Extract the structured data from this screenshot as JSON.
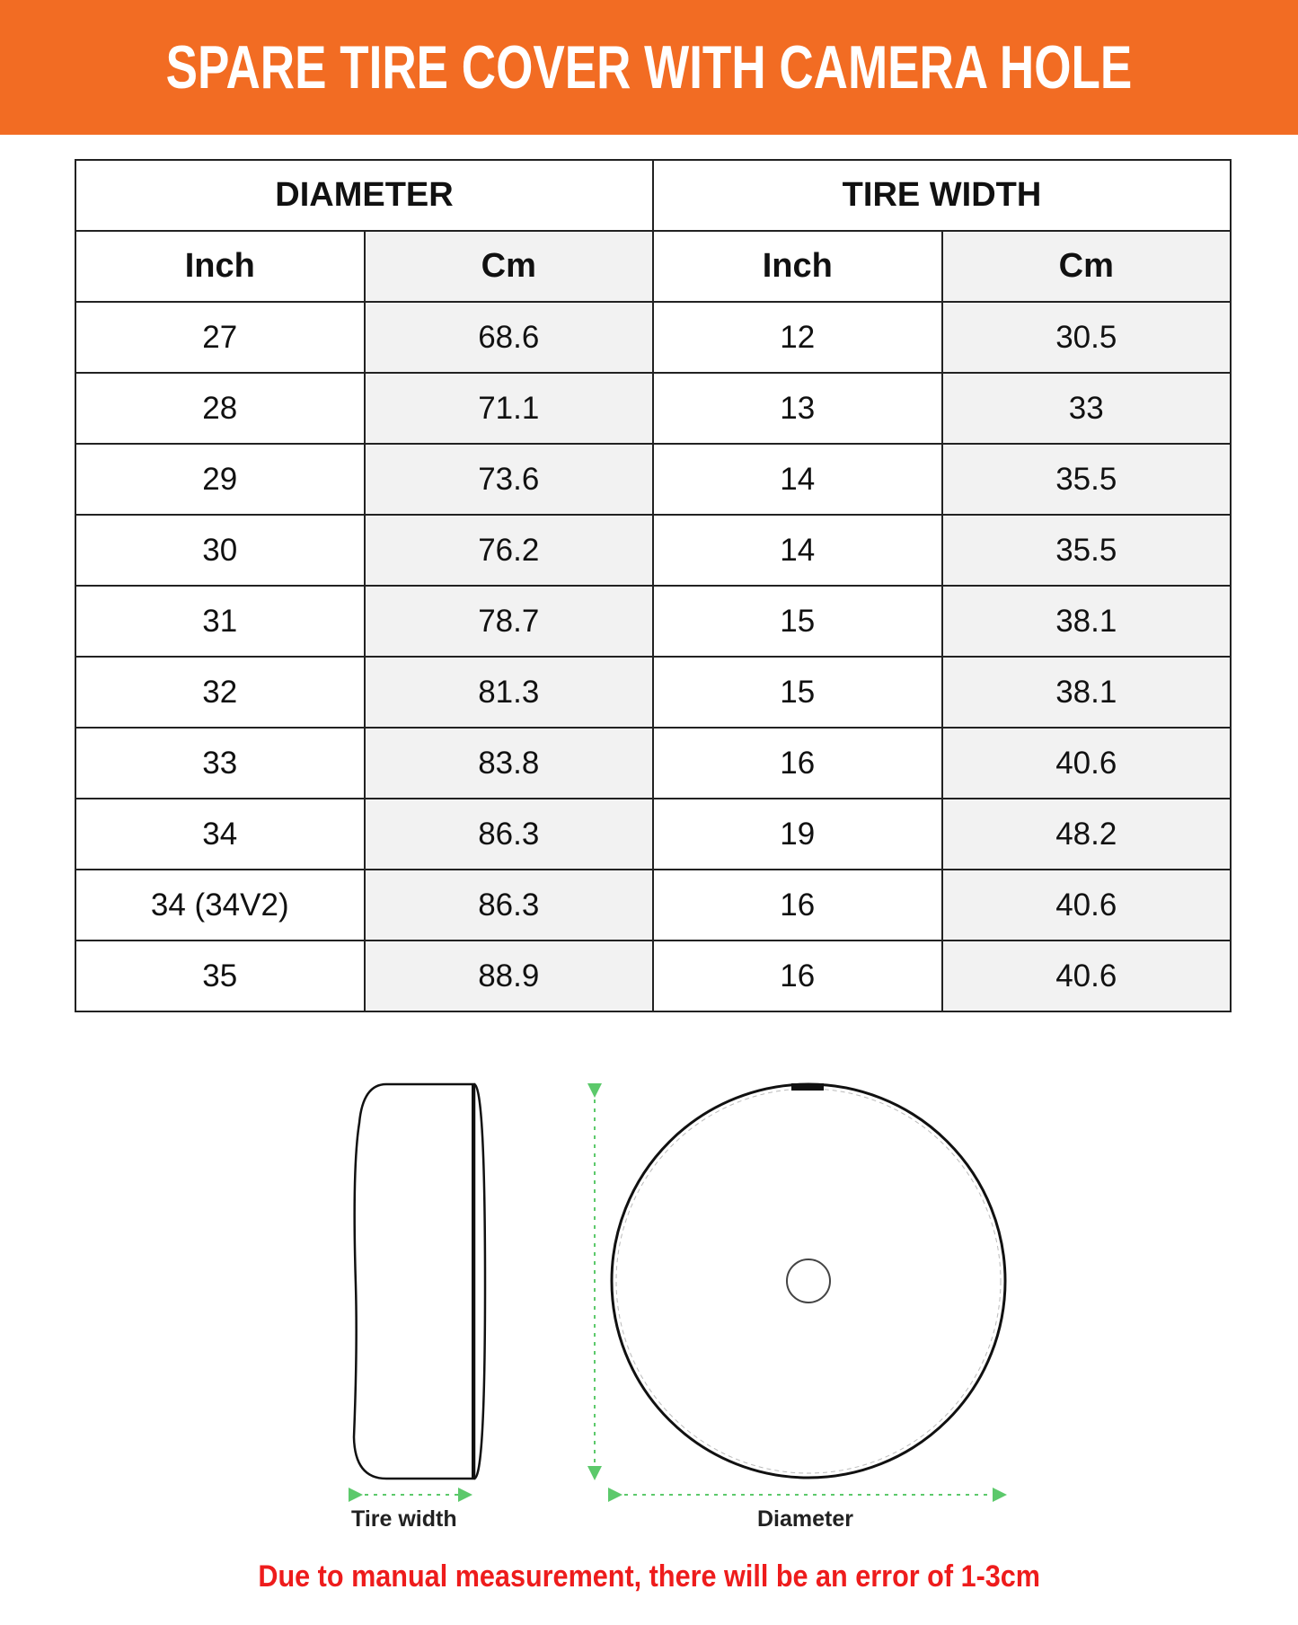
{
  "title": "SPARE TIRE COVER WITH CAMERA HOLE",
  "colors": {
    "banner": "#F26C23",
    "note": "#EE1C1C",
    "arrow": "#5CC96B"
  },
  "table": {
    "group_headers": [
      "DIAMETER",
      "TIRE WIDTH"
    ],
    "sub_headers": [
      "Inch",
      "Cm",
      "Inch",
      "Cm"
    ],
    "rows": [
      [
        "27",
        "68.6",
        "12",
        "30.5"
      ],
      [
        "28",
        "71.1",
        "13",
        "33"
      ],
      [
        "29",
        "73.6",
        "14",
        "35.5"
      ],
      [
        "30",
        "76.2",
        "14",
        "35.5"
      ],
      [
        "31",
        "78.7",
        "15",
        "38.1"
      ],
      [
        "32",
        "81.3",
        "15",
        "38.1"
      ],
      [
        "33",
        "83.8",
        "16",
        "40.6"
      ],
      [
        "34",
        "86.3",
        "19",
        "48.2"
      ],
      [
        "34 (34V2)",
        "86.3",
        "16",
        "40.6"
      ],
      [
        "35",
        "88.9",
        "16",
        "40.6"
      ]
    ]
  },
  "diagram": {
    "tire_width_label": "Tire width",
    "diameter_label": "Diameter"
  },
  "note": "Due to manual measurement, there will be an error of 1-3cm"
}
